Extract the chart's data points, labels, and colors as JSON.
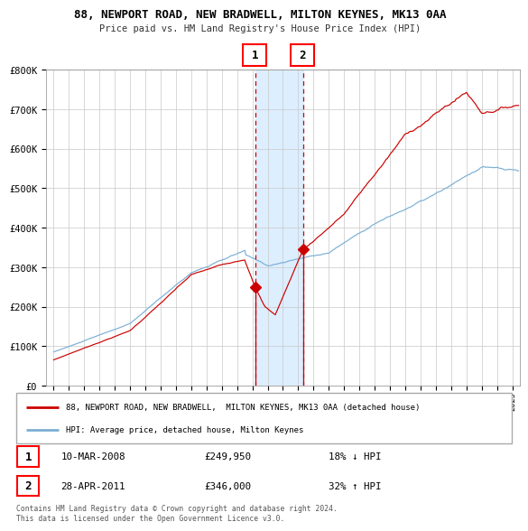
{
  "title1": "88, NEWPORT ROAD, NEW BRADWELL, MILTON KEYNES, MK13 0AA",
  "title2": "Price paid vs. HM Land Registry's House Price Index (HPI)",
  "legend_line1": "88, NEWPORT ROAD, NEW BRADWELL,  MILTON KEYNES, MK13 0AA (detached house)",
  "legend_line2": "HPI: Average price, detached house, Milton Keynes",
  "table": [
    {
      "num": "1",
      "date": "10-MAR-2008",
      "price": "£249,950",
      "hpi": "18% ↓ HPI"
    },
    {
      "num": "2",
      "date": "28-APR-2011",
      "price": "£346,000",
      "hpi": "32% ↑ HPI"
    }
  ],
  "footer": "Contains HM Land Registry data © Crown copyright and database right 2024.\nThis data is licensed under the Open Government Licence v3.0.",
  "sale1_year": 2008.19,
  "sale1_price": 249950,
  "sale2_year": 2011.32,
  "sale2_price": 346000,
  "hpi_color": "#7bafd4",
  "price_color": "#cc0000",
  "marker_color": "#cc0000",
  "vline_color": "#cc0000",
  "shade_color": "#ddeeff",
  "bg_color": "#f0f0f0",
  "ylim_max": 800000,
  "ylim_min": 0,
  "xlim_min": 1994.5,
  "xlim_max": 2025.5
}
